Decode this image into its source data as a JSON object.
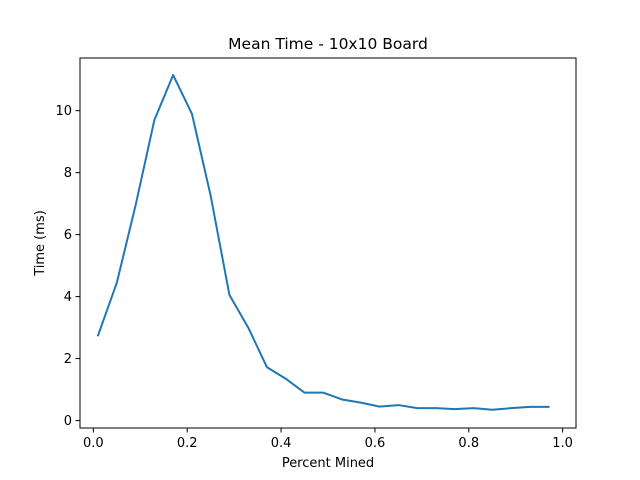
{
  "chart_data": {
    "type": "line",
    "title": "Mean Time - 10x10 Board",
    "xlabel": "Percent Mined",
    "ylabel": "Time (ms)",
    "xlim": [
      -0.0285,
      1.0285
    ],
    "ylim": [
      -0.24,
      11.7
    ],
    "x_ticks": [
      0.0,
      0.2,
      0.4,
      0.6,
      0.8,
      1.0
    ],
    "x_tick_labels": [
      "0.0",
      "0.2",
      "0.4",
      "0.6",
      "0.8",
      "1.0"
    ],
    "y_ticks": [
      0,
      2,
      4,
      6,
      8,
      10
    ],
    "y_tick_labels": [
      "0",
      "2",
      "4",
      "6",
      "8",
      "10"
    ],
    "grid": false,
    "series": [
      {
        "color": "#1f77b4",
        "x": [
          0.01,
          0.05,
          0.09,
          0.13,
          0.17,
          0.21,
          0.25,
          0.29,
          0.33,
          0.37,
          0.41,
          0.45,
          0.49,
          0.53,
          0.57,
          0.61,
          0.65,
          0.69,
          0.73,
          0.77,
          0.81,
          0.85,
          0.89,
          0.93,
          0.97
        ],
        "y": [
          2.75,
          4.45,
          6.95,
          9.7,
          11.15,
          9.9,
          7.25,
          4.05,
          3.0,
          1.72,
          1.35,
          0.9,
          0.9,
          0.68,
          0.58,
          0.45,
          0.5,
          0.4,
          0.4,
          0.37,
          0.4,
          0.35,
          0.4,
          0.44,
          0.44
        ]
      }
    ]
  }
}
